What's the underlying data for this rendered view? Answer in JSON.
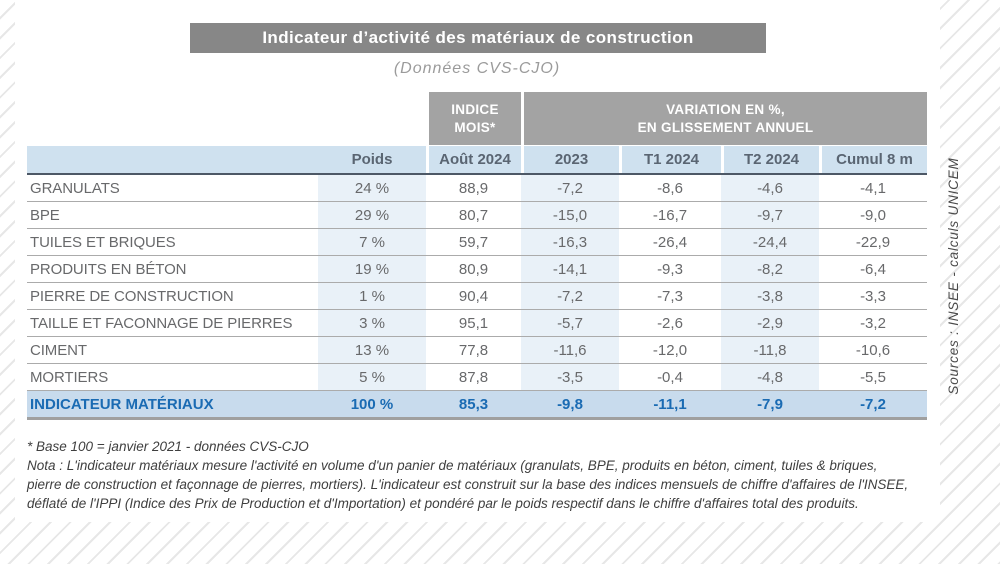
{
  "title": "Indicateur d’activité des matériaux de construction",
  "subtitle": "(Données CVS-CJO)",
  "source_note": "Sources : INSEE - calculs UNICEM",
  "table": {
    "group_headers": {
      "indice": {
        "line1": "INDICE",
        "line2": "MOIS*"
      },
      "variation": {
        "line1": "VARIATION EN %,",
        "line2": "EN GLISSEMENT ANNUEL"
      }
    },
    "columns": [
      "Poids",
      "Août 2024",
      "2023",
      "T1 2024",
      "T2 2024",
      "Cumul 8 m"
    ],
    "rows": [
      {
        "label": "GRANULATS",
        "values": [
          "24 %",
          "88,9",
          "-7,2",
          "-8,6",
          "-4,6",
          "-4,1"
        ]
      },
      {
        "label": "BPE",
        "values": [
          "29 %",
          "80,7",
          "-15,0",
          "-16,7",
          "-9,7",
          "-9,0"
        ]
      },
      {
        "label": "TUILES ET BRIQUES",
        "values": [
          "7 %",
          "59,7",
          "-16,3",
          "-26,4",
          "-24,4",
          "-22,9"
        ]
      },
      {
        "label": "PRODUITS EN BÉTON",
        "values": [
          "19 %",
          "80,9",
          "-14,1",
          "-9,3",
          "-8,2",
          "-6,4"
        ]
      },
      {
        "label": "PIERRE DE CONSTRUCTION",
        "values": [
          "1 %",
          "90,4",
          "-7,2",
          "-7,3",
          "-3,8",
          "-3,3"
        ]
      },
      {
        "label": "TAILLE ET FACONNAGE DE PIERRES",
        "values": [
          "3 %",
          "95,1",
          "-5,7",
          "-2,6",
          "-2,9",
          "-3,2"
        ]
      },
      {
        "label": "CIMENT",
        "values": [
          "13 %",
          "77,8",
          "-11,6",
          "-12,0",
          "-11,8",
          "-10,6"
        ]
      },
      {
        "label": "MORTIERS",
        "values": [
          "5 %",
          "87,8",
          "-3,5",
          "-0,4",
          "-4,8",
          "-5,5"
        ]
      }
    ],
    "total_row": {
      "label": "INDICATEUR MATÉRIAUX",
      "values": [
        "100 %",
        "85,3",
        "-9,8",
        "-11,1",
        "-7,9",
        "-7,2"
      ]
    }
  },
  "footnotes": {
    "base": "* Base 100 = janvier 2021 - données CVS-CJO",
    "nota": "Nota :  L'indicateur matériaux mesure l'activité en volume d'un panier de matériaux (granulats, BPE, produits en béton, ciment, tuiles & briques, pierre de construction et façonnage de pierres, mortiers). L'indicateur est construit sur la base des indices mensuels de chiffre d'affaires de l'INSEE, déflaté de l'IPPI (Indice des Prix de Production et d'Importation) et pondéré par le poids respectif dans le chiffre d'affaires total des produits."
  },
  "colors": {
    "title_bar": "#878787",
    "header_gray": "#a3a3a3",
    "header_blue": "#cfe1ef",
    "column_band_blue": "#e9f1f8",
    "total_row_bg": "#c8dbed",
    "accent_blue": "#1a6bb3"
  }
}
